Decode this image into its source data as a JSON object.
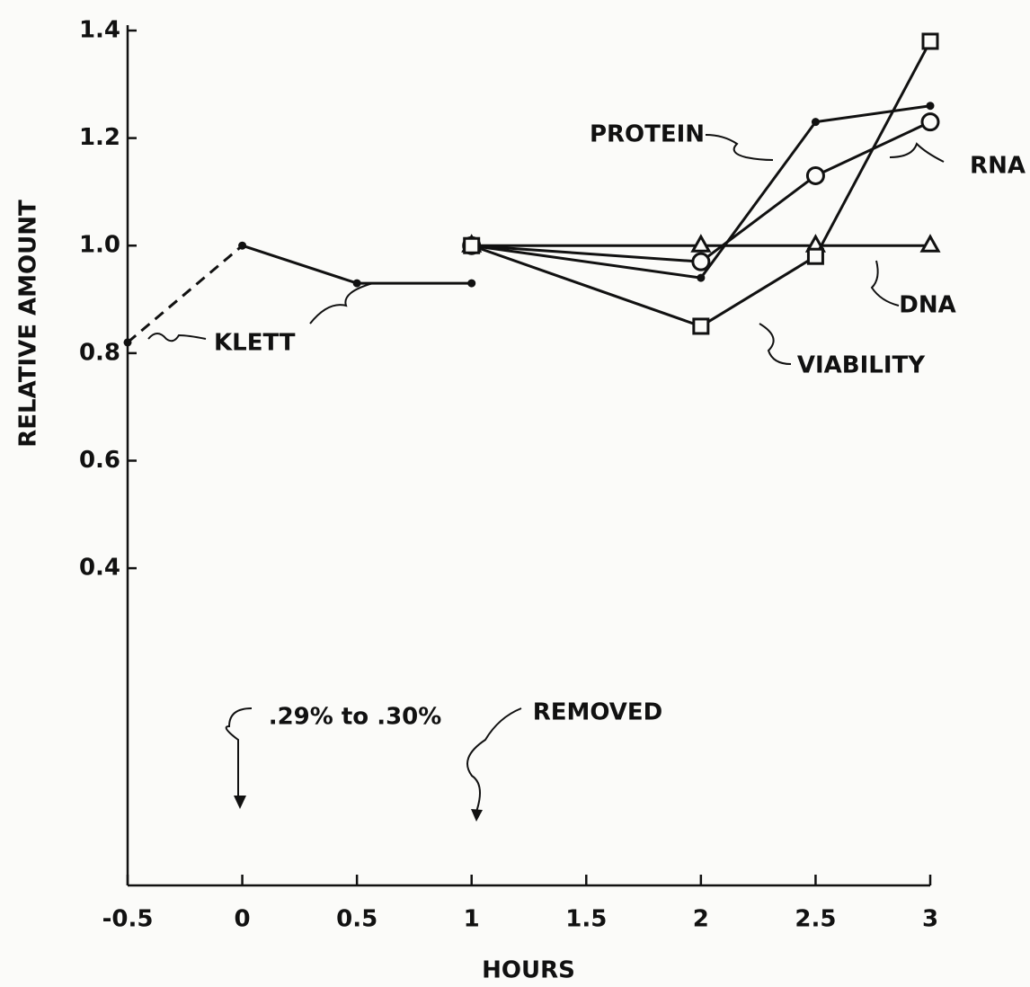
{
  "chart_data": {
    "type": "line",
    "xlabel": "HOURS",
    "ylabel": "RELATIVE AMOUNT",
    "xlim": [
      -0.5,
      3
    ],
    "ylim": [
      -0.19,
      1.41
    ],
    "xticks": [
      -0.5,
      0,
      0.5,
      1,
      1.5,
      2,
      2.5,
      3
    ],
    "yticks": [
      {
        "value": 1.4,
        "label": "1.4"
      },
      {
        "value": 1.2,
        "label": "1.2"
      },
      {
        "value": 1,
        "label": "1.0"
      },
      {
        "value": 0.8,
        "label": "0.8"
      },
      {
        "value": 0.6,
        "label": "0.6"
      },
      {
        "value": 0.4,
        "label": "0.4"
      }
    ],
    "series": [
      {
        "name": "KLETT",
        "color": "#111111",
        "marker": "dot",
        "x": [
          -0.5,
          0,
          0.5,
          1
        ],
        "values": [
          0.82,
          1.0,
          0.93,
          0.93
        ],
        "dashed_segments": [
          0
        ]
      },
      {
        "name": "PROTEIN",
        "color": "#111111",
        "marker": "dot",
        "x": [
          1,
          2,
          2.5,
          3
        ],
        "values": [
          1.0,
          0.94,
          1.23,
          1.26
        ]
      },
      {
        "name": "RNA",
        "color": "#111111",
        "marker": "circle",
        "x": [
          1,
          2,
          2.5,
          3
        ],
        "values": [
          1.0,
          0.97,
          1.13,
          1.23
        ]
      },
      {
        "name": "DNA",
        "color": "#111111",
        "marker": "triangle",
        "x": [
          1,
          2,
          2.5,
          3
        ],
        "values": [
          1.0,
          1.0,
          1.0,
          1.0
        ]
      },
      {
        "name": "VIABILITY",
        "color": "#111111",
        "marker": "square",
        "x": [
          1,
          2,
          2.5,
          3
        ],
        "values": [
          1.0,
          0.85,
          0.98,
          1.38
        ]
      }
    ],
    "annotations": [
      ".29% to .30%",
      "REMOVED"
    ]
  }
}
